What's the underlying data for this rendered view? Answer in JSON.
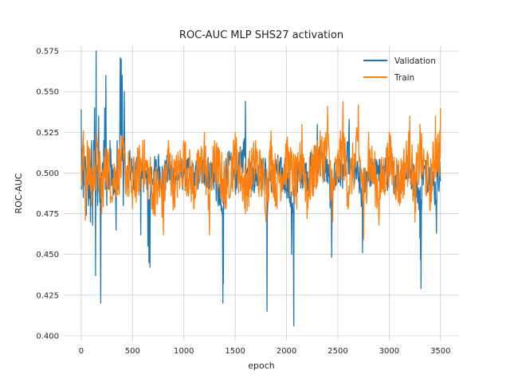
{
  "chart_data": {
    "type": "line",
    "title": "ROC-AUC MLP SHS27 activation",
    "xlabel": "epoch",
    "ylabel": "ROC-AUC",
    "xlim": [
      -170,
      3680
    ],
    "ylim": [
      0.397,
      0.578
    ],
    "x_ticks": [
      0,
      500,
      1000,
      1500,
      2000,
      2500,
      3000,
      3500
    ],
    "y_ticks": [
      0.4,
      0.425,
      0.45,
      0.475,
      0.5,
      0.525,
      0.55,
      0.575
    ],
    "x_tick_labels": [
      "0",
      "500",
      "1000",
      "1500",
      "2000",
      "2500",
      "3000",
      "3500"
    ],
    "y_tick_labels": [
      "0.400",
      "0.425",
      "0.450",
      "0.475",
      "0.500",
      "0.525",
      "0.550",
      "0.575"
    ],
    "grid": true,
    "legend": {
      "position": "top-right"
    },
    "series": [
      {
        "name": "Validation",
        "color": "#1f77b4",
        "points": [
          [
            0,
            0.539
          ],
          [
            5,
            0.49
          ],
          [
            10,
            0.515
          ],
          [
            20,
            0.485
          ],
          [
            40,
            0.51
          ],
          [
            50,
            0.474
          ],
          [
            60,
            0.5
          ],
          [
            70,
            0.48
          ],
          [
            90,
            0.47
          ],
          [
            100,
            0.52
          ],
          [
            110,
            0.468
          ],
          [
            120,
            0.52
          ],
          [
            130,
            0.54
          ],
          [
            135,
            0.49
          ],
          [
            140,
            0.437
          ],
          [
            145,
            0.575
          ],
          [
            150,
            0.5
          ],
          [
            160,
            0.48
          ],
          [
            170,
            0.535
          ],
          [
            180,
            0.482
          ],
          [
            190,
            0.42
          ],
          [
            200,
            0.5
          ],
          [
            210,
            0.49
          ],
          [
            220,
            0.52
          ],
          [
            230,
            0.54
          ],
          [
            235,
            0.49
          ],
          [
            240,
            0.56
          ],
          [
            250,
            0.48
          ],
          [
            260,
            0.51
          ],
          [
            270,
            0.49
          ],
          [
            280,
            0.52
          ],
          [
            300,
            0.505
          ],
          [
            320,
            0.49
          ],
          [
            340,
            0.465
          ],
          [
            350,
            0.52
          ],
          [
            360,
            0.49
          ],
          [
            380,
            0.571
          ],
          [
            390,
            0.57
          ],
          [
            395,
            0.51
          ],
          [
            400,
            0.56
          ],
          [
            410,
            0.48
          ],
          [
            420,
            0.55
          ],
          [
            430,
            0.5
          ],
          [
            450,
            0.49
          ],
          [
            470,
            0.51
          ],
          [
            500,
            0.5
          ],
          [
            520,
            0.495
          ],
          [
            550,
            0.51
          ],
          [
            570,
            0.49
          ],
          [
            580,
            0.462
          ],
          [
            600,
            0.5
          ],
          [
            640,
            0.49
          ],
          [
            650,
            0.455
          ],
          [
            660,
            0.445
          ],
          [
            670,
            0.442
          ],
          [
            680,
            0.5
          ],
          [
            700,
            0.495
          ],
          [
            750,
            0.51
          ],
          [
            800,
            0.49
          ],
          [
            850,
            0.505
          ],
          [
            900,
            0.495
          ],
          [
            1000,
            0.5
          ],
          [
            1100,
            0.49
          ],
          [
            1200,
            0.505
          ],
          [
            1300,
            0.495
          ],
          [
            1380,
            0.42
          ],
          [
            1385,
            0.432
          ],
          [
            1390,
            0.5
          ],
          [
            1450,
            0.51
          ],
          [
            1500,
            0.49
          ],
          [
            1600,
            0.544
          ],
          [
            1610,
            0.5
          ],
          [
            1700,
            0.495
          ],
          [
            1800,
            0.5
          ],
          [
            1810,
            0.415
          ],
          [
            1820,
            0.49
          ],
          [
            1900,
            0.505
          ],
          [
            2000,
            0.49
          ],
          [
            2050,
            0.45
          ],
          [
            2070,
            0.406
          ],
          [
            2080,
            0.49
          ],
          [
            2150,
            0.505
          ],
          [
            2200,
            0.495
          ],
          [
            2300,
            0.53
          ],
          [
            2400,
            0.5
          ],
          [
            2440,
            0.448
          ],
          [
            2450,
            0.49
          ],
          [
            2550,
            0.505
          ],
          [
            2610,
            0.533
          ],
          [
            2620,
            0.5
          ],
          [
            2700,
            0.495
          ],
          [
            2740,
            0.451
          ],
          [
            2750,
            0.49
          ],
          [
            2800,
            0.505
          ],
          [
            2900,
            0.495
          ],
          [
            3000,
            0.5
          ],
          [
            3100,
            0.49
          ],
          [
            3200,
            0.51
          ],
          [
            3300,
            0.46
          ],
          [
            3305,
            0.447
          ],
          [
            3310,
            0.429
          ],
          [
            3320,
            0.5
          ],
          [
            3400,
            0.495
          ],
          [
            3460,
            0.463
          ],
          [
            3470,
            0.5
          ],
          [
            3500,
            0.495
          ]
        ]
      },
      {
        "name": "Train",
        "color": "#ff7f0e",
        "points": [
          [
            0,
            0.504
          ],
          [
            20,
            0.526
          ],
          [
            40,
            0.471
          ],
          [
            60,
            0.52
          ],
          [
            100,
            0.48
          ],
          [
            150,
            0.525
          ],
          [
            200,
            0.475
          ],
          [
            250,
            0.515
          ],
          [
            300,
            0.485
          ],
          [
            400,
            0.52
          ],
          [
            500,
            0.478
          ],
          [
            600,
            0.52
          ],
          [
            700,
            0.475
          ],
          [
            800,
            0.462
          ],
          [
            850,
            0.52
          ],
          [
            900,
            0.48
          ],
          [
            1000,
            0.52
          ],
          [
            1100,
            0.478
          ],
          [
            1200,
            0.525
          ],
          [
            1250,
            0.462
          ],
          [
            1300,
            0.52
          ],
          [
            1400,
            0.478
          ],
          [
            1500,
            0.525
          ],
          [
            1600,
            0.475
          ],
          [
            1700,
            0.52
          ],
          [
            1800,
            0.47
          ],
          [
            1850,
            0.526
          ],
          [
            1900,
            0.48
          ],
          [
            2000,
            0.52
          ],
          [
            2100,
            0.478
          ],
          [
            2150,
            0.53
          ],
          [
            2200,
            0.472
          ],
          [
            2300,
            0.52
          ],
          [
            2400,
            0.541
          ],
          [
            2450,
            0.47
          ],
          [
            2550,
            0.544
          ],
          [
            2600,
            0.478
          ],
          [
            2700,
            0.542
          ],
          [
            2750,
            0.459
          ],
          [
            2800,
            0.525
          ],
          [
            2900,
            0.468
          ],
          [
            3000,
            0.525
          ],
          [
            3100,
            0.48
          ],
          [
            3200,
            0.535
          ],
          [
            3250,
            0.47
          ],
          [
            3300,
            0.53
          ],
          [
            3400,
            0.478
          ],
          [
            3450,
            0.535
          ],
          [
            3500,
            0.54
          ]
        ]
      }
    ]
  }
}
